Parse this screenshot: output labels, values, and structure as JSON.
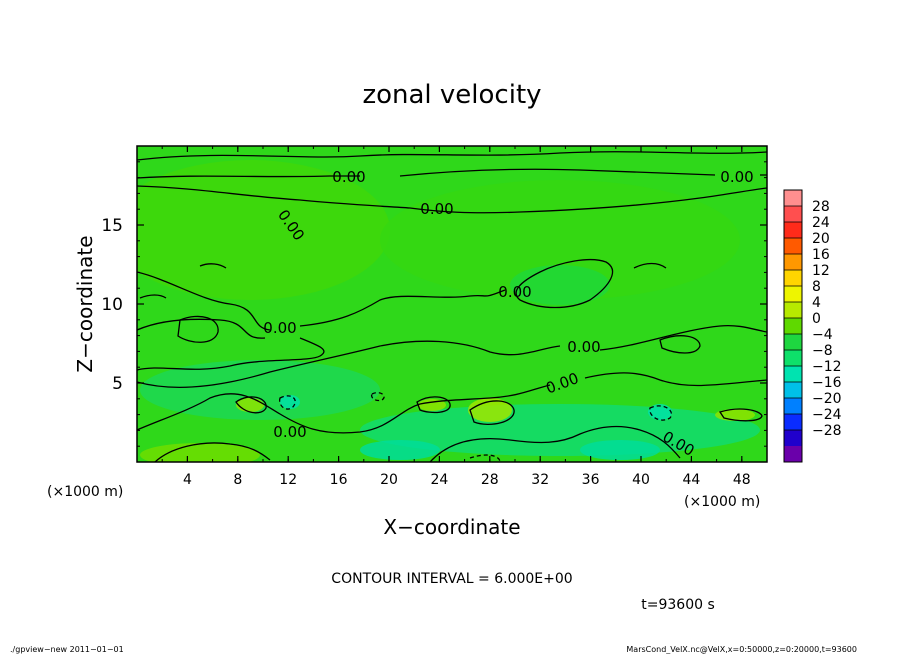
{
  "chart_data": {
    "type": "heatmap",
    "title": "zonal velocity",
    "xlabel": "X−coordinate",
    "ylabel": "Z−coordinate",
    "x_unit_label": "(×1000 m)",
    "z_unit_label": "(×1000 m)",
    "xlim": [
      0,
      50
    ],
    "ylim": [
      0,
      20
    ],
    "x_ticks": [
      "4",
      "8",
      "12",
      "16",
      "20",
      "24",
      "28",
      "32",
      "36",
      "40",
      "44",
      "48"
    ],
    "y_ticks": [
      "5",
      "10",
      "15"
    ],
    "colorbar": {
      "ticks": [
        "28",
        "24",
        "20",
        "16",
        "12",
        "8",
        "4",
        "0",
        "−4",
        "−8",
        "−12",
        "−16",
        "−20",
        "−24",
        "−28"
      ],
      "colors": [
        "#ff8f8f",
        "#ff4f4f",
        "#ff2b1a",
        "#ff5a00",
        "#ff9800",
        "#ffd500",
        "#eef500",
        "#b7ea00",
        "#5fd900",
        "#1ed640",
        "#0ee06a",
        "#00e3b0",
        "#00c0e8",
        "#0080ff",
        "#0a2cff",
        "#2000cc",
        "#6a00aa"
      ],
      "range": [
        -28,
        28
      ],
      "interval": 4
    },
    "contour_interval_text": "CONTOUR INTERVAL = 6.000E+00",
    "contour_labels": [
      "0.00"
    ],
    "time_text": "t=93600 s",
    "value_range_approx": [
      -8,
      8
    ]
  },
  "footer": {
    "left": "./gpview−new  2011−01−01",
    "right": "MarsCond_VelX.nc@VelX,x=0:50000,z=0:20000,t=93600"
  }
}
